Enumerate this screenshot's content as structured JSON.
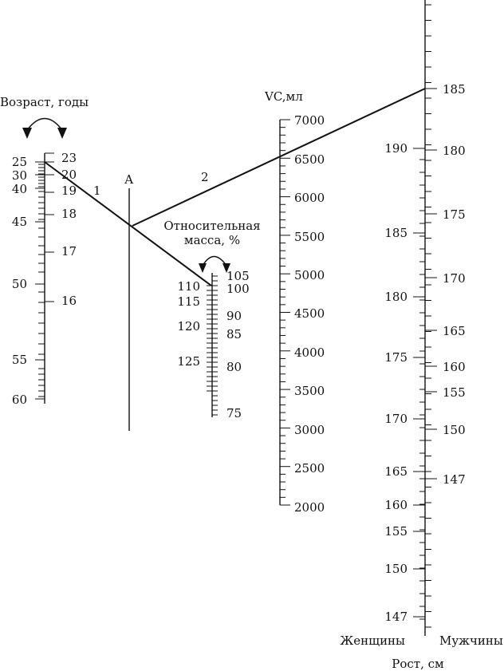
{
  "age_scale": {
    "title": "Возраст, годы",
    "left_labels": [
      "25",
      "30",
      "40",
      "45",
      "50",
      "55",
      "60"
    ],
    "right_labels": [
      "23",
      "20",
      "19",
      "18",
      "17",
      "16"
    ]
  },
  "mass_scale": {
    "title_line1": "Относительная",
    "title_line2": "масса, %",
    "left_labels": [
      "110",
      "115",
      "120",
      "125"
    ],
    "right_labels": [
      "105",
      "100",
      "90",
      "85",
      "80",
      "75"
    ]
  },
  "vc_scale": {
    "title": "VC,мл",
    "labels": [
      "7000",
      "6500",
      "6000",
      "5500",
      "5000",
      "4500",
      "4000",
      "3500",
      "3000",
      "2500",
      "2000"
    ]
  },
  "height_scale": {
    "title": "Рост, см",
    "women_label": "Женщины",
    "men_label": "Мужчины",
    "women_labels": [
      "190",
      "185",
      "180",
      "175",
      "170",
      "165",
      "160",
      "155",
      "150",
      "147"
    ],
    "men_labels": [
      "185",
      "180",
      "175",
      "170",
      "165",
      "160",
      "155",
      "150",
      "147"
    ]
  },
  "axis_a_label": "А",
  "line_labels": [
    "1",
    "2"
  ]
}
